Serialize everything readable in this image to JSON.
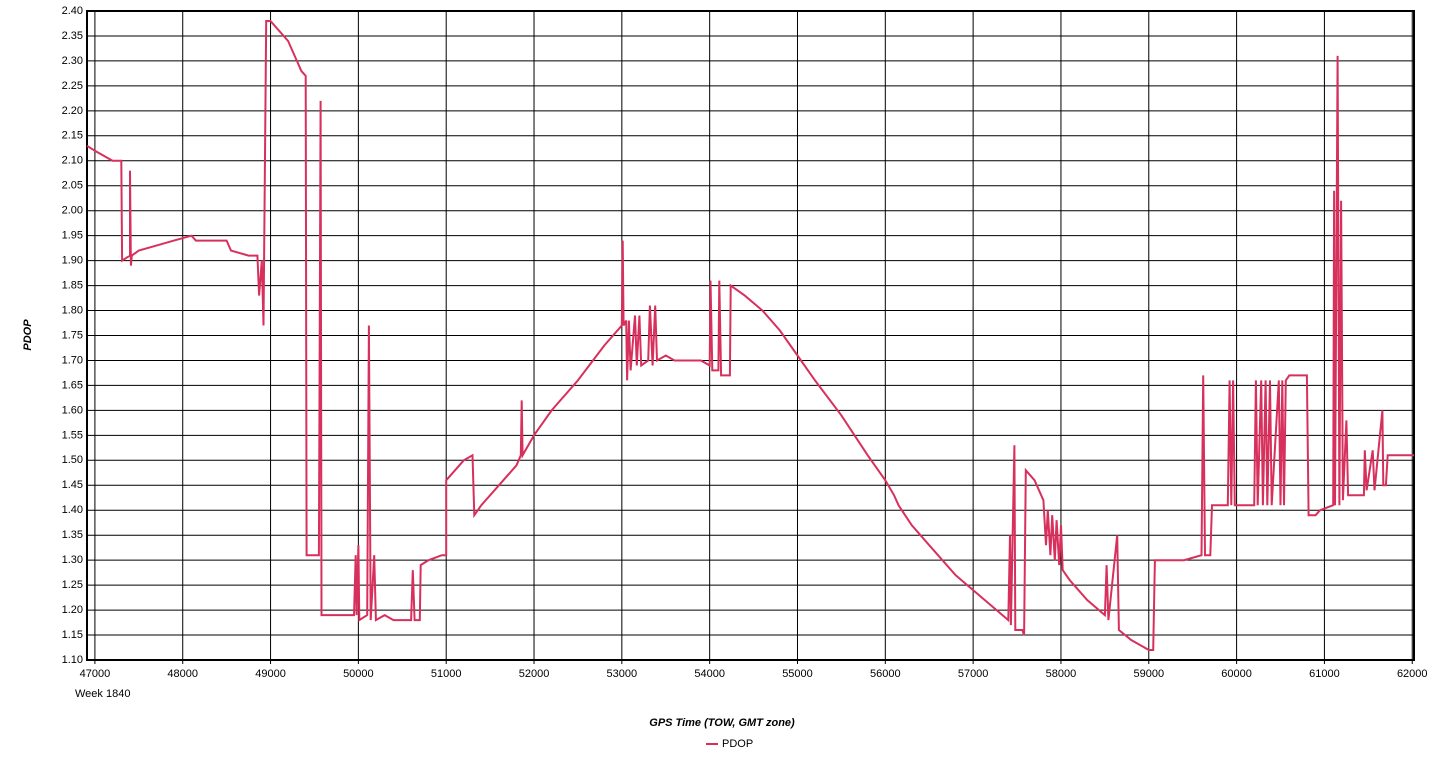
{
  "chart_data": {
    "type": "line",
    "ylabel": "PDOP",
    "xlabel": "GPS Time (TOW, GMT zone)",
    "x_note": "Week 1840",
    "grid": true,
    "legend": "bottom",
    "xlim": [
      46910,
      62020
    ],
    "ylim": [
      1.1,
      2.4
    ],
    "xticks": [
      47000,
      48000,
      49000,
      50000,
      51000,
      52000,
      53000,
      54000,
      55000,
      56000,
      57000,
      58000,
      59000,
      60000,
      61000,
      62000
    ],
    "yticks": [
      {
        "value": 1.1,
        "label": "1.10"
      },
      1.15,
      {
        "value": 1.2,
        "label": "1.20"
      },
      1.25,
      {
        "value": 1.3,
        "label": "1.30"
      },
      1.35,
      {
        "value": 1.4,
        "label": "1.40"
      },
      1.45,
      {
        "value": 1.5,
        "label": "1.50"
      },
      1.55,
      {
        "value": 1.6,
        "label": "1.60"
      },
      1.65,
      {
        "value": 1.7,
        "label": "1.70"
      },
      1.75,
      {
        "value": 1.8,
        "label": "1.80"
      },
      1.85,
      {
        "value": 1.9,
        "label": "1.90"
      },
      1.95,
      {
        "value": 2.0,
        "label": "2.00"
      },
      2.05,
      {
        "value": 2.1,
        "label": "2.10"
      },
      2.15,
      {
        "value": 2.2,
        "label": "2.20"
      },
      2.25,
      {
        "value": 2.3,
        "label": "2.30"
      },
      2.35,
      {
        "value": 2.4,
        "label": "2.40"
      }
    ],
    "series": [
      {
        "name": "PDOP",
        "color": "#d8305c",
        "x": [
          46910,
          47000,
          47100,
          47200,
          47300,
          47310,
          47400,
          47400,
          47410,
          47420,
          47500,
          47700,
          47900,
          48100,
          48150,
          48500,
          48550,
          48750,
          48850,
          48870,
          48900,
          48920,
          48950,
          49000,
          49050,
          49100,
          49200,
          49300,
          49350,
          49400,
          49410,
          49550,
          49570,
          49580,
          49950,
          49970,
          49980,
          50000,
          50010,
          50100,
          50120,
          50140,
          50180,
          50200,
          50300,
          50400,
          50600,
          50620,
          50640,
          50700,
          50710,
          50800,
          50950,
          51000,
          51000,
          51100,
          51200,
          51300,
          51320,
          51400,
          51600,
          51800,
          51850,
          51860,
          51870,
          52000,
          52200,
          52500,
          52800,
          53000,
          53010,
          53020,
          53050,
          53060,
          53080,
          53100,
          53150,
          53170,
          53200,
          53220,
          53300,
          53320,
          53350,
          53380,
          53400,
          53500,
          53600,
          53900,
          54000,
          54010,
          54030,
          54100,
          54110,
          54130,
          54230,
          54240,
          54400,
          54600,
          54800,
          55000,
          55200,
          55500,
          55800,
          56000,
          56100,
          56150,
          56300,
          56500,
          56800,
          57000,
          57200,
          57400,
          57420,
          57430,
          57470,
          57480,
          57560,
          57580,
          57600,
          57700,
          57800,
          57830,
          57850,
          57880,
          57900,
          57930,
          57950,
          57980,
          58000,
          58020,
          58100,
          58300,
          58500,
          58520,
          58540,
          58640,
          58660,
          58800,
          59000,
          59050,
          59070,
          59400,
          59600,
          59620,
          59640,
          59700,
          59720,
          59900,
          59920,
          59940,
          59960,
          59980,
          60200,
          60220,
          60240,
          60280,
          60300,
          60330,
          60350,
          60380,
          60400,
          60480,
          60500,
          60520,
          60540,
          60560,
          60600,
          60800,
          60820,
          60900,
          60950,
          61100,
          61110,
          61120,
          61150,
          61170,
          61190,
          61210,
          61250,
          61270,
          61450,
          61460,
          61480,
          61550,
          61570,
          61660,
          61670,
          61700,
          61720,
          62020
        ],
        "values": [
          2.13,
          2.12,
          2.11,
          2.1,
          2.1,
          1.9,
          1.91,
          2.08,
          1.89,
          1.91,
          1.92,
          1.93,
          1.94,
          1.95,
          1.94,
          1.94,
          1.92,
          1.91,
          1.91,
          1.83,
          1.9,
          1.77,
          2.38,
          2.38,
          2.37,
          2.36,
          2.34,
          2.3,
          2.28,
          2.27,
          1.31,
          1.31,
          2.22,
          1.19,
          1.19,
          1.31,
          1.19,
          1.33,
          1.18,
          1.19,
          1.77,
          1.18,
          1.31,
          1.18,
          1.19,
          1.18,
          1.18,
          1.28,
          1.18,
          1.18,
          1.29,
          1.3,
          1.31,
          1.31,
          1.46,
          1.48,
          1.5,
          1.51,
          1.39,
          1.41,
          1.45,
          1.49,
          1.51,
          1.62,
          1.51,
          1.55,
          1.6,
          1.66,
          1.73,
          1.77,
          1.94,
          1.77,
          1.78,
          1.66,
          1.78,
          1.68,
          1.79,
          1.69,
          1.79,
          1.69,
          1.7,
          1.81,
          1.69,
          1.81,
          1.7,
          1.71,
          1.7,
          1.7,
          1.69,
          1.86,
          1.68,
          1.68,
          1.86,
          1.67,
          1.67,
          1.85,
          1.83,
          1.8,
          1.76,
          1.71,
          1.66,
          1.59,
          1.51,
          1.46,
          1.43,
          1.41,
          1.37,
          1.33,
          1.27,
          1.24,
          1.21,
          1.18,
          1.35,
          1.17,
          1.53,
          1.16,
          1.16,
          1.15,
          1.48,
          1.46,
          1.42,
          1.33,
          1.4,
          1.31,
          1.39,
          1.3,
          1.38,
          1.29,
          1.37,
          1.28,
          1.26,
          1.22,
          1.19,
          1.29,
          1.18,
          1.35,
          1.16,
          1.14,
          1.12,
          1.12,
          1.3,
          1.3,
          1.31,
          1.67,
          1.31,
          1.31,
          1.41,
          1.41,
          1.66,
          1.41,
          1.66,
          1.41,
          1.41,
          1.66,
          1.41,
          1.66,
          1.41,
          1.66,
          1.41,
          1.66,
          1.41,
          1.66,
          1.41,
          1.66,
          1.41,
          1.66,
          1.67,
          1.67,
          1.39,
          1.39,
          1.4,
          1.41,
          2.04,
          1.41,
          2.31,
          1.41,
          2.02,
          1.42,
          1.58,
          1.43,
          1.43,
          1.52,
          1.44,
          1.52,
          1.44,
          1.6,
          1.45,
          1.45,
          1.51,
          1.51
        ]
      }
    ]
  }
}
